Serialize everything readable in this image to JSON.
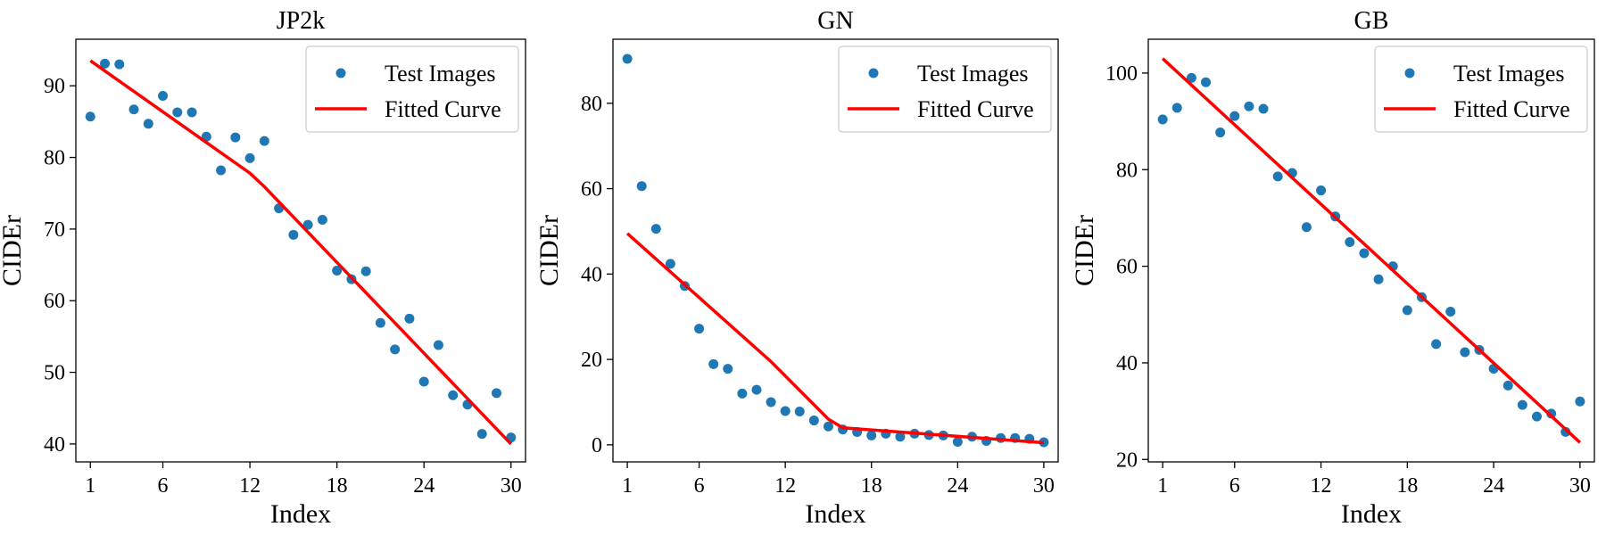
{
  "chart_data": [
    {
      "type": "scatter",
      "title": "JP2k",
      "xlabel": "Index",
      "ylabel": "CIDEr",
      "xlim": [
        0,
        31
      ],
      "ylim": [
        37.5,
        96.5
      ],
      "xticks": [
        1,
        6,
        12,
        18,
        24,
        30
      ],
      "xtick_labels": [
        "1",
        "6",
        "12",
        "18",
        "24",
        "30"
      ],
      "yticks": [
        40,
        50,
        60,
        70,
        80,
        90
      ],
      "ytick_labels": [
        "40",
        "50",
        "60",
        "70",
        "80",
        "90"
      ],
      "legend": {
        "position": "top-right",
        "entries": [
          "Test Images",
          "Fitted Curve"
        ]
      },
      "grid": false,
      "series": [
        {
          "name": "Test Images",
          "kind": "scatter",
          "color": "#1f77b4",
          "x": [
            1,
            2,
            3,
            4,
            5,
            6,
            7,
            8,
            9,
            10,
            11,
            12,
            13,
            14,
            15,
            16,
            17,
            18,
            19,
            20,
            21,
            22,
            23,
            24,
            25,
            26,
            27,
            28,
            29,
            30
          ],
          "y": [
            85.7,
            93.1,
            93.0,
            86.7,
            84.7,
            88.6,
            86.3,
            86.3,
            82.9,
            78.2,
            82.8,
            79.9,
            82.3,
            72.9,
            69.2,
            70.6,
            71.3,
            64.2,
            63.0,
            64.1,
            56.9,
            53.2,
            57.5,
            48.7,
            53.8,
            46.8,
            45.5,
            41.4,
            47.1,
            40.9
          ]
        },
        {
          "name": "Fitted Curve",
          "kind": "line",
          "color": "#ff0000",
          "x": [
            1,
            12,
            13,
            30
          ],
          "y": [
            93.5,
            77.8,
            75.9,
            40.0
          ]
        }
      ]
    },
    {
      "type": "scatter",
      "title": "GN",
      "xlabel": "Index",
      "ylabel": "CIDEr",
      "xlim": [
        0,
        31
      ],
      "ylim": [
        -4,
        95
      ],
      "xticks": [
        1,
        6,
        12,
        18,
        24,
        30
      ],
      "xtick_labels": [
        "1",
        "6",
        "12",
        "18",
        "24",
        "30"
      ],
      "yticks": [
        0,
        20,
        40,
        60,
        80
      ],
      "ytick_labels": [
        "0",
        "20",
        "40",
        "60",
        "80"
      ],
      "legend": {
        "position": "top-right",
        "entries": [
          "Test Images",
          "Fitted Curve"
        ]
      },
      "grid": false,
      "series": [
        {
          "name": "Test Images",
          "kind": "scatter",
          "color": "#1f77b4",
          "x": [
            1,
            2,
            3,
            4,
            5,
            6,
            7,
            8,
            9,
            10,
            11,
            12,
            13,
            14,
            15,
            16,
            17,
            18,
            19,
            20,
            21,
            22,
            23,
            24,
            25,
            26,
            27,
            28,
            29,
            30
          ],
          "y": [
            90.4,
            60.6,
            50.6,
            42.4,
            37.2,
            27.2,
            18.9,
            17.8,
            12.0,
            12.9,
            10.0,
            7.9,
            7.8,
            5.7,
            4.3,
            3.6,
            3.0,
            2.2,
            2.6,
            1.9,
            2.6,
            2.3,
            2.2,
            0.7,
            1.9,
            0.9,
            1.6,
            1.6,
            1.4,
            0.6
          ]
        },
        {
          "name": "Fitted Curve",
          "kind": "line",
          "color": "#ff0000",
          "x": [
            1,
            11,
            15,
            16,
            30
          ],
          "y": [
            49.5,
            19.5,
            6.0,
            4.0,
            0.5
          ]
        }
      ]
    },
    {
      "type": "scatter",
      "title": "GB",
      "xlabel": "Index",
      "ylabel": "CIDEr",
      "xlim": [
        0,
        31
      ],
      "ylim": [
        19.5,
        107
      ],
      "xticks": [
        1,
        6,
        12,
        18,
        24,
        30
      ],
      "xtick_labels": [
        "1",
        "6",
        "12",
        "18",
        "24",
        "30"
      ],
      "yticks": [
        20,
        40,
        60,
        80,
        100
      ],
      "ytick_labels": [
        "20",
        "40",
        "60",
        "80",
        "100"
      ],
      "legend": {
        "position": "top-right",
        "entries": [
          "Test Images",
          "Fitted Curve"
        ]
      },
      "grid": false,
      "series": [
        {
          "name": "Test Images",
          "kind": "scatter",
          "color": "#1f77b4",
          "x": [
            1,
            2,
            3,
            4,
            5,
            6,
            7,
            8,
            9,
            10,
            11,
            12,
            13,
            14,
            15,
            16,
            17,
            18,
            19,
            20,
            21,
            22,
            23,
            24,
            25,
            26,
            27,
            28,
            29,
            30
          ],
          "y": [
            90.4,
            92.8,
            99.0,
            98.1,
            87.7,
            91.1,
            93.1,
            92.6,
            78.6,
            79.3,
            68.1,
            75.7,
            70.3,
            65.0,
            62.7,
            57.3,
            60.0,
            50.9,
            53.6,
            43.9,
            50.6,
            42.2,
            42.7,
            38.8,
            35.3,
            31.3,
            28.9,
            29.5,
            25.7,
            32.0
          ]
        },
        {
          "name": "Fitted Curve",
          "kind": "line",
          "color": "#ff0000",
          "x": [
            1,
            30
          ],
          "y": [
            103.0,
            23.5
          ]
        }
      ]
    }
  ]
}
